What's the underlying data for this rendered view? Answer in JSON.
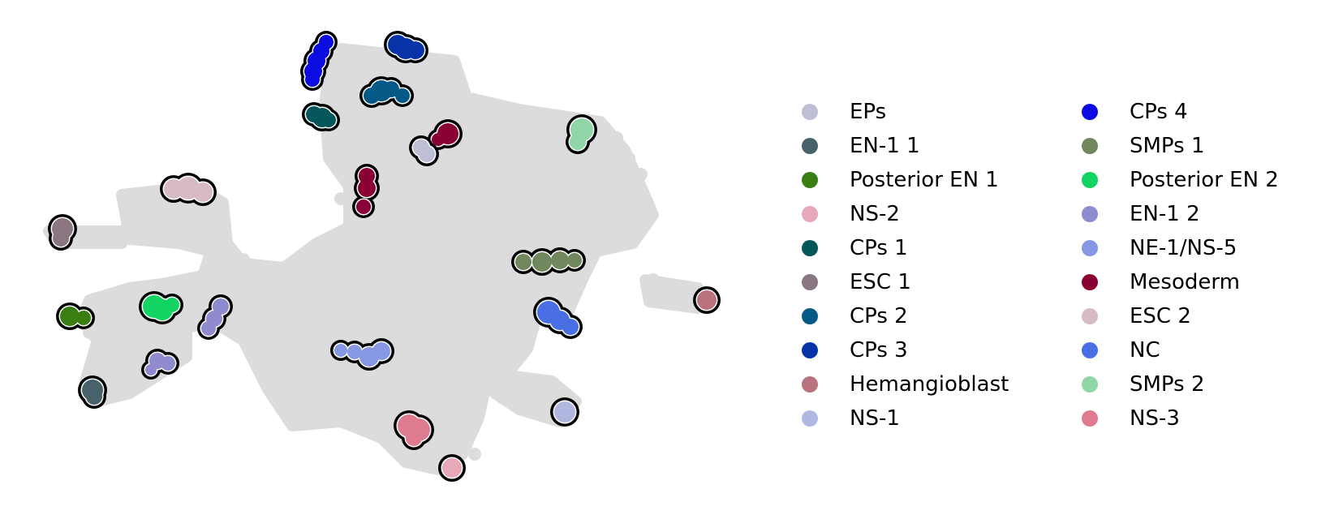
{
  "chart_data": {
    "type": "scatter",
    "title": "",
    "xlabel": "",
    "ylabel": "",
    "axes_visible": false,
    "background_cells_color": "#dcdcdc",
    "highlight_outline_color": "#000000",
    "legend_placement": "right",
    "legend_columns": 2,
    "series": [
      {
        "name": "EPs",
        "color": "#bdbfd6"
      },
      {
        "name": "EN-1 1",
        "color": "#47626b"
      },
      {
        "name": "Posterior EN 1",
        "color": "#3a7d12"
      },
      {
        "name": "NS-2",
        "color": "#e7a9b7"
      },
      {
        "name": "CPs 1",
        "color": "#06575a"
      },
      {
        "name": "ESC 1",
        "color": "#8a7782"
      },
      {
        "name": "CPs 2",
        "color": "#045987"
      },
      {
        "name": "CPs 3",
        "color": "#0634a8"
      },
      {
        "name": "Hemangioblast",
        "color": "#b9727e"
      },
      {
        "name": "NS-1",
        "color": "#b1b7e1"
      },
      {
        "name": "CPs 4",
        "color": "#0b0cdf"
      },
      {
        "name": "SMPs 1",
        "color": "#71875d"
      },
      {
        "name": "Posterior EN 2",
        "color": "#12d463"
      },
      {
        "name": "EN-1 2",
        "color": "#8f8bce"
      },
      {
        "name": "NE-1/NS-5",
        "color": "#8698e3"
      },
      {
        "name": "Mesoderm",
        "color": "#8a0235"
      },
      {
        "name": "ESC 2",
        "color": "#d8bac3"
      },
      {
        "name": "NC",
        "color": "#4a6ee3"
      },
      {
        "name": "SMPs 2",
        "color": "#8fd7a6"
      },
      {
        "name": "NS-3",
        "color": "#de7b91"
      }
    ]
  }
}
